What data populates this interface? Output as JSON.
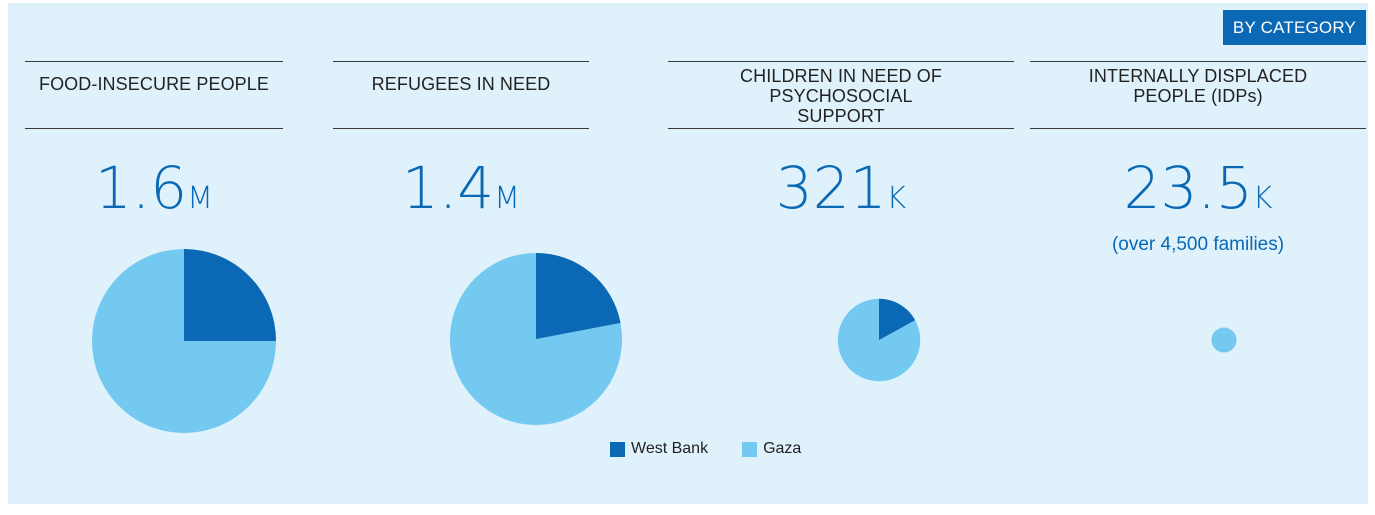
{
  "badge": "BY CATEGORY",
  "colors": {
    "west_bank": "#0a68b4",
    "gaza": "#74c9f0"
  },
  "categories": [
    {
      "title": "FOOD-INSECURE PEOPLE",
      "value": "1.6",
      "unit": "M",
      "note": ""
    },
    {
      "title": "REFUGEES IN NEED",
      "value": "1.4",
      "unit": "M",
      "note": ""
    },
    {
      "title": "CHILDREN IN NEED OF PSYCHOSOCIAL SUPPORT",
      "value": "321",
      "unit": "K",
      "note": ""
    },
    {
      "title": "INTERNALLY DISPLACED PEOPLE (IDPs)",
      "value": "23.5",
      "unit": "K",
      "note": "(over 4,500 families)"
    }
  ],
  "legend": {
    "west_bank": "West Bank",
    "gaza": "Gaza"
  },
  "chart_data": {
    "type": "pie",
    "series_names": [
      "West Bank",
      "Gaza"
    ],
    "charts": [
      {
        "category": "FOOD-INSECURE PEOPLE",
        "total": 1600000,
        "west_bank_share": 0.25,
        "gaza_share": 0.75
      },
      {
        "category": "REFUGEES IN NEED",
        "total": 1400000,
        "west_bank_share": 0.22,
        "gaza_share": 0.78
      },
      {
        "category": "CHILDREN IN NEED OF PSYCHOSOCIAL SUPPORT",
        "total": 321000,
        "west_bank_share": 0.17,
        "gaza_share": 0.83
      },
      {
        "category": "INTERNALLY DISPLACED PEOPLE (IDPs)",
        "total": 23500,
        "west_bank_share": 0.0,
        "gaza_share": 1.0
      }
    ]
  }
}
